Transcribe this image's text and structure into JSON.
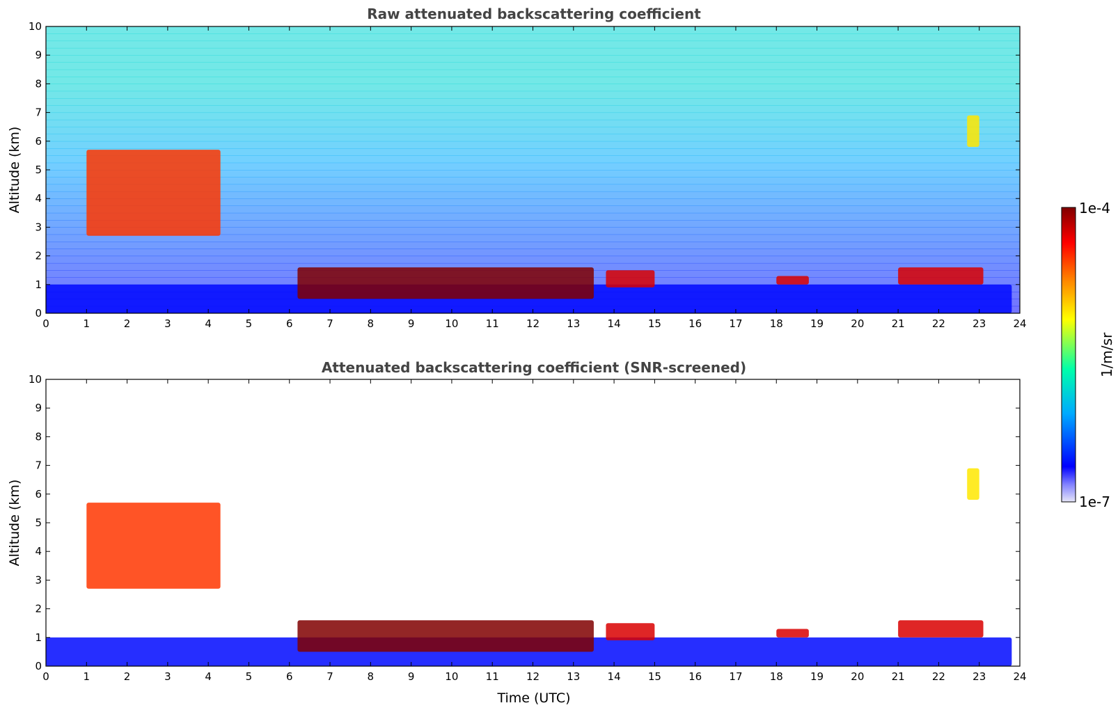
{
  "chart_data": [
    {
      "type": "heatmap",
      "title": "Raw attenuated backscattering coefficient",
      "xlabel": "",
      "ylabel": "Altitude (km)",
      "xlim": [
        0,
        24
      ],
      "ylim": [
        0,
        10
      ],
      "xticks": [
        "0",
        "1",
        "2",
        "3",
        "4",
        "5",
        "6",
        "7",
        "8",
        "9",
        "10",
        "11",
        "12",
        "13",
        "14",
        "15",
        "16",
        "17",
        "18",
        "19",
        "20",
        "21",
        "22",
        "23",
        "24"
      ],
      "yticks": [
        "0",
        "1",
        "2",
        "3",
        "4",
        "5",
        "6",
        "7",
        "8",
        "9",
        "10"
      ],
      "grid": false,
      "screened": false,
      "features": [
        {
          "name": "boundary layer",
          "t": [
            0,
            23.8
          ],
          "z": [
            0,
            1.0
          ],
          "level": 0.15
        },
        {
          "name": "mid-level cloud arc",
          "t": [
            1.0,
            4.3
          ],
          "z": [
            2.7,
            5.7
          ],
          "level": 0.8
        },
        {
          "name": "low cloud",
          "t": [
            6.2,
            13.5
          ],
          "z": [
            0.5,
            1.6
          ],
          "level": 1.0
        },
        {
          "name": "low cloud",
          "t": [
            13.8,
            15.0
          ],
          "z": [
            0.9,
            1.5
          ],
          "level": 0.9
        },
        {
          "name": "low cloud",
          "t": [
            18.0,
            18.8
          ],
          "z": [
            1.0,
            1.3
          ],
          "level": 0.9
        },
        {
          "name": "low cloud",
          "t": [
            21.0,
            23.1
          ],
          "z": [
            1.0,
            1.6
          ],
          "level": 0.9
        },
        {
          "name": "upper cloud",
          "t": [
            22.7,
            23.0
          ],
          "z": [
            5.8,
            6.9
          ],
          "level": 0.6
        }
      ]
    },
    {
      "type": "heatmap",
      "title": "Attenuated backscattering coefficient (SNR-screened)",
      "xlabel": "Time (UTC)",
      "ylabel": "Altitude (km)",
      "xlim": [
        0,
        24
      ],
      "ylim": [
        0,
        10
      ],
      "xticks": [
        "0",
        "1",
        "2",
        "3",
        "4",
        "5",
        "6",
        "7",
        "8",
        "9",
        "10",
        "11",
        "12",
        "13",
        "14",
        "15",
        "16",
        "17",
        "18",
        "19",
        "20",
        "21",
        "22",
        "23",
        "24"
      ],
      "yticks": [
        "0",
        "1",
        "2",
        "3",
        "4",
        "5",
        "6",
        "7",
        "8",
        "9",
        "10"
      ],
      "grid": false,
      "screened": true,
      "features": [
        {
          "name": "boundary layer",
          "t": [
            0,
            23.8
          ],
          "z": [
            0,
            1.0
          ],
          "level": 0.15
        },
        {
          "name": "mid-level cloud arc",
          "t": [
            1.0,
            4.3
          ],
          "z": [
            2.7,
            5.7
          ],
          "level": 0.8
        },
        {
          "name": "low cloud",
          "t": [
            6.2,
            13.5
          ],
          "z": [
            0.5,
            1.6
          ],
          "level": 1.0
        },
        {
          "name": "low cloud",
          "t": [
            13.8,
            15.0
          ],
          "z": [
            0.9,
            1.5
          ],
          "level": 0.9
        },
        {
          "name": "low cloud",
          "t": [
            18.0,
            18.8
          ],
          "z": [
            1.0,
            1.3
          ],
          "level": 0.9
        },
        {
          "name": "low cloud",
          "t": [
            21.0,
            23.1
          ],
          "z": [
            1.0,
            1.6
          ],
          "level": 0.9
        },
        {
          "name": "upper cloud",
          "t": [
            22.7,
            23.0
          ],
          "z": [
            5.8,
            6.9
          ],
          "level": 0.6
        }
      ]
    }
  ],
  "colorbar": {
    "label": "1/m/sr",
    "max_label": "1e-4",
    "min_label": "1e-7",
    "colormap": [
      "#e6e6f8",
      "#0000ff",
      "#00aaff",
      "#00ffaa",
      "#ffff00",
      "#ff8800",
      "#ff0000",
      "#800000"
    ]
  }
}
